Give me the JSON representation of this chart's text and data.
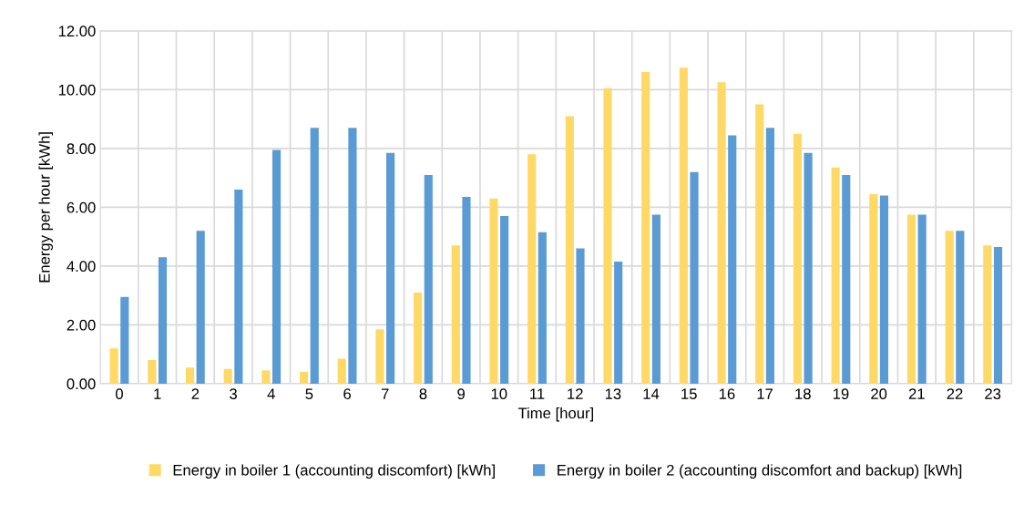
{
  "chart_data": {
    "type": "bar",
    "xlabel": "Time [hour]",
    "ylabel": "Energy per hour [kWh]",
    "categories": [
      "0",
      "1",
      "2",
      "3",
      "4",
      "5",
      "6",
      "7",
      "8",
      "9",
      "10",
      "11",
      "12",
      "13",
      "14",
      "15",
      "16",
      "17",
      "18",
      "19",
      "20",
      "21",
      "22",
      "23"
    ],
    "series": [
      {
        "name": "Energy in boiler 1 (accounting discomfort) [kWh]",
        "color": "#ffd966",
        "values": [
          1.2,
          0.8,
          0.55,
          0.5,
          0.45,
          0.4,
          0.85,
          1.85,
          3.1,
          4.7,
          6.3,
          7.8,
          9.1,
          10.05,
          10.6,
          10.75,
          10.25,
          9.5,
          8.5,
          7.35,
          6.45,
          5.75,
          5.2,
          4.7
        ]
      },
      {
        "name": "Energy in boiler 2 (accounting discomfort and backup) [kWh]",
        "color": "#5b9bd5",
        "values": [
          2.95,
          4.3,
          5.2,
          6.6,
          7.95,
          8.7,
          8.7,
          7.85,
          7.1,
          6.35,
          5.7,
          5.15,
          4.6,
          4.15,
          5.75,
          7.2,
          8.45,
          8.7,
          7.85,
          7.1,
          6.4,
          5.75,
          5.2,
          4.65
        ]
      }
    ],
    "ylim": [
      0,
      12
    ],
    "yticks": [
      {
        "value": 0,
        "label": "0.00"
      },
      {
        "value": 2,
        "label": "2.00"
      },
      {
        "value": 4,
        "label": "4.00"
      },
      {
        "value": 6,
        "label": "6.00"
      },
      {
        "value": 8,
        "label": "8.00"
      },
      {
        "value": 10,
        "label": "10.00"
      },
      {
        "value": 12,
        "label": "12.00"
      }
    ],
    "grid": true,
    "legend": "bottom"
  }
}
